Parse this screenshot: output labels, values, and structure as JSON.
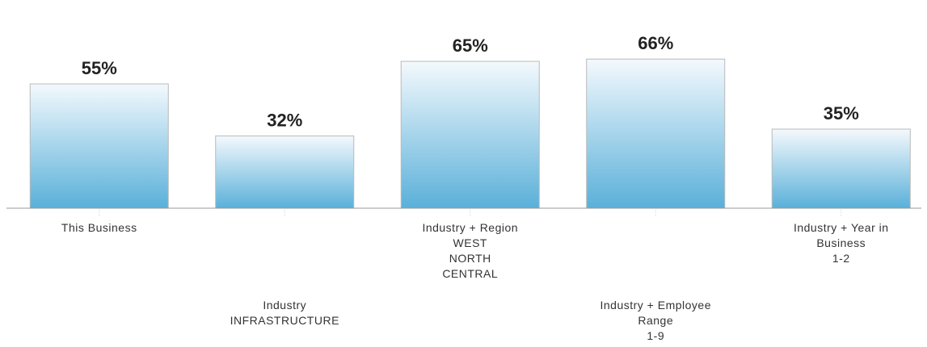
{
  "chart_data": {
    "type": "bar",
    "categories": [
      [
        "This Business"
      ],
      [
        "Industry",
        "INFRASTRUCTURE"
      ],
      [
        "Industry + Region",
        "WEST",
        "NORTH",
        "CENTRAL"
      ],
      [
        "Industry + Employee",
        "Range",
        "1-9"
      ],
      [
        "Industry + Year in",
        "Business",
        "1-2"
      ]
    ],
    "values": [
      55,
      32,
      65,
      66,
      35
    ],
    "value_labels": [
      "55%",
      "32%",
      "65%",
      "66%",
      "35%"
    ],
    "ylim": [
      0,
      100
    ],
    "grid": false,
    "legend": "none",
    "colors": {
      "bar_top": "#f4f9fd",
      "bar_bottom": "#5ab0d9",
      "bar_edge": "#b9b9b9",
      "axis": "#999999"
    }
  }
}
